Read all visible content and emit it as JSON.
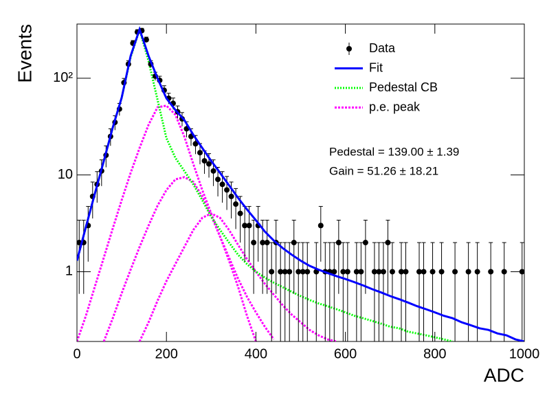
{
  "chart_data": {
    "type": "histogram-fit",
    "y_label": "Events",
    "x_label": "ADC",
    "xlim": [
      0,
      1000
    ],
    "xticks": [
      0,
      200,
      400,
      600,
      800,
      1000
    ],
    "ylim": [
      0.19,
      363
    ],
    "log_y": true,
    "yticks": [
      1,
      10,
      {
        "value": 100,
        "label": "10²"
      }
    ],
    "legend": "top-right",
    "annotations": [
      "Pedestal = 139.00 ± 1.39",
      "Gain = 51.26 ± 18.21"
    ],
    "curve_x": [
      0,
      20,
      40,
      60,
      80,
      100,
      120,
      140,
      160,
      180,
      200,
      220,
      240,
      260,
      280,
      300,
      320,
      340,
      360,
      380,
      400,
      420,
      440,
      460,
      480,
      500,
      520,
      540,
      560,
      580,
      600,
      620,
      640,
      660,
      680,
      700,
      720,
      740,
      760,
      780,
      800,
      820,
      840,
      860,
      880,
      900,
      920,
      940,
      960,
      980,
      1000
    ],
    "series": [
      {
        "name": "Data",
        "color": "#000000",
        "x": [
          5,
          15,
          25,
          35,
          45,
          55,
          65,
          75,
          85,
          95,
          105,
          115,
          125,
          135,
          145,
          155,
          165,
          175,
          185,
          195,
          205,
          215,
          225,
          235,
          245,
          255,
          265,
          275,
          285,
          295,
          305,
          315,
          325,
          335,
          345,
          355,
          365,
          375,
          385,
          395,
          405,
          415,
          425,
          435,
          445,
          455,
          465,
          475,
          485,
          495,
          505,
          515,
          525,
          535,
          545,
          555,
          565,
          575,
          585,
          595,
          605,
          615,
          625,
          635,
          645,
          655,
          665,
          675,
          685,
          695,
          705,
          715,
          725,
          735,
          745,
          755,
          765,
          775,
          785,
          795,
          805,
          815,
          825,
          835,
          845,
          855,
          865,
          875,
          885,
          895,
          905,
          915,
          925,
          935,
          945,
          955,
          965,
          975,
          985,
          995
        ],
        "values": [
          2,
          2,
          3,
          6,
          8,
          11,
          16,
          25,
          35,
          48,
          90,
          140,
          230,
          300,
          310,
          250,
          140,
          105,
          95,
          75,
          62,
          55,
          45,
          38,
          30,
          25,
          21,
          17,
          14,
          13,
          11,
          9,
          8,
          7,
          6,
          5,
          4,
          3,
          3,
          2,
          3,
          2,
          2,
          1,
          2,
          1,
          1,
          1,
          2,
          1,
          1,
          1,
          null,
          1,
          3,
          1,
          1,
          1,
          2,
          1,
          1,
          null,
          1,
          1,
          2,
          null,
          1,
          1,
          1,
          2,
          1,
          null,
          1,
          1,
          null,
          null,
          1,
          1,
          null,
          1,
          null,
          1,
          null,
          null,
          1,
          null,
          null,
          1,
          null,
          1,
          null,
          null,
          1,
          null,
          null,
          1,
          null,
          null,
          null,
          1
        ],
        "errors": [
          1.41,
          1.41,
          1.73,
          2.45,
          2.83,
          3.32,
          4,
          5,
          5.92,
          6.93,
          9.49,
          11.83,
          15.17,
          17.32,
          17.61,
          15.81,
          11.83,
          10.25,
          9.75,
          8.66,
          7.87,
          7.42,
          6.71,
          6.16,
          5.48,
          5,
          4.58,
          4.12,
          3.74,
          3.61,
          3.32,
          3,
          2.83,
          2.65,
          2.45,
          2.24,
          2,
          1.73,
          1.73,
          1.41,
          1.73,
          1.41,
          1.41,
          1,
          1.41,
          1,
          1,
          1,
          1.41,
          1,
          1,
          1,
          null,
          1,
          1.73,
          1,
          1,
          1,
          1.41,
          1,
          1,
          null,
          1,
          1,
          1.41,
          null,
          1,
          1,
          1,
          1.41,
          1,
          null,
          1,
          1,
          null,
          null,
          1,
          1,
          null,
          1,
          null,
          1,
          null,
          null,
          1,
          null,
          null,
          1,
          null,
          1,
          null,
          null,
          1,
          null,
          null,
          1,
          null,
          null,
          null,
          1
        ]
      },
      {
        "name": "Fit",
        "color": "#0000ff",
        "values": [
          1.3,
          2.9,
          6.4,
          14,
          31,
          63,
          170,
          320,
          170,
          100,
          62,
          47,
          37,
          26,
          19,
          14,
          10.5,
          7.8,
          5.8,
          4.4,
          3.4,
          2.6,
          2.1,
          1.75,
          1.5,
          1.3,
          1.15,
          1.05,
          0.97,
          0.9,
          0.84,
          0.78,
          0.72,
          0.66,
          0.61,
          0.56,
          0.52,
          0.48,
          0.44,
          0.41,
          0.38,
          0.35,
          0.33,
          0.3,
          0.28,
          0.26,
          0.25,
          0.23,
          0.22,
          0.2,
          0.19
        ]
      },
      {
        "name": "Pedestal CB",
        "color": "#00ff00",
        "values": [
          1.3,
          2.9,
          6.4,
          14,
          31,
          63,
          165,
          318,
          150,
          60,
          24,
          15,
          11,
          8,
          5.5,
          3.7,
          2.7,
          2.0,
          1.5,
          1.2,
          1.0,
          0.87,
          0.77,
          0.69,
          0.62,
          0.56,
          0.51,
          0.47,
          0.44,
          0.41,
          0.38,
          0.35,
          0.33,
          0.31,
          0.29,
          0.27,
          0.26,
          0.24,
          0.23,
          0.22,
          0.21,
          0.2,
          0.19,
          null,
          null,
          null,
          null,
          null,
          null,
          null,
          null
        ]
      },
      {
        "name": "p.e. peak",
        "color": "#ff00ff",
        "curves": [
          [
            0.19,
            0.35,
            0.7,
            1.4,
            2.8,
            5.5,
            10.5,
            19,
            33,
            50,
            52,
            42,
            25,
            13,
            7,
            4,
            2.3,
            1.3,
            0.7,
            0.35,
            0.19,
            null,
            null,
            null,
            null,
            null,
            null,
            null,
            null,
            null,
            null,
            null,
            null,
            null,
            null,
            null,
            null,
            null,
            null,
            null,
            null,
            null,
            null,
            null,
            null,
            null,
            null,
            null,
            null,
            null,
            null
          ],
          [
            null,
            null,
            null,
            0.19,
            0.33,
            0.6,
            1.05,
            1.8,
            3,
            4.8,
            7,
            9,
            9.5,
            8.5,
            6,
            3.8,
            2.3,
            1.4,
            0.85,
            0.55,
            0.38,
            0.27,
            0.2,
            null,
            null,
            null,
            null,
            null,
            null,
            null,
            null,
            null,
            null,
            null,
            null,
            null,
            null,
            null,
            null,
            null,
            null,
            null,
            null,
            null,
            null,
            null,
            null,
            null,
            null,
            null,
            null
          ],
          [
            null,
            null,
            null,
            null,
            null,
            null,
            null,
            0.19,
            0.3,
            0.5,
            0.8,
            1.2,
            1.8,
            2.7,
            3.6,
            4,
            3.6,
            2.7,
            1.9,
            1.35,
            1.0,
            0.75,
            0.58,
            0.45,
            0.36,
            0.3,
            0.25,
            0.22,
            0.2,
            0.19,
            null,
            null,
            null,
            null,
            null,
            null,
            null,
            null,
            null,
            null,
            null,
            null,
            null,
            null,
            null,
            null,
            null,
            null,
            null,
            null,
            null
          ]
        ]
      }
    ]
  }
}
